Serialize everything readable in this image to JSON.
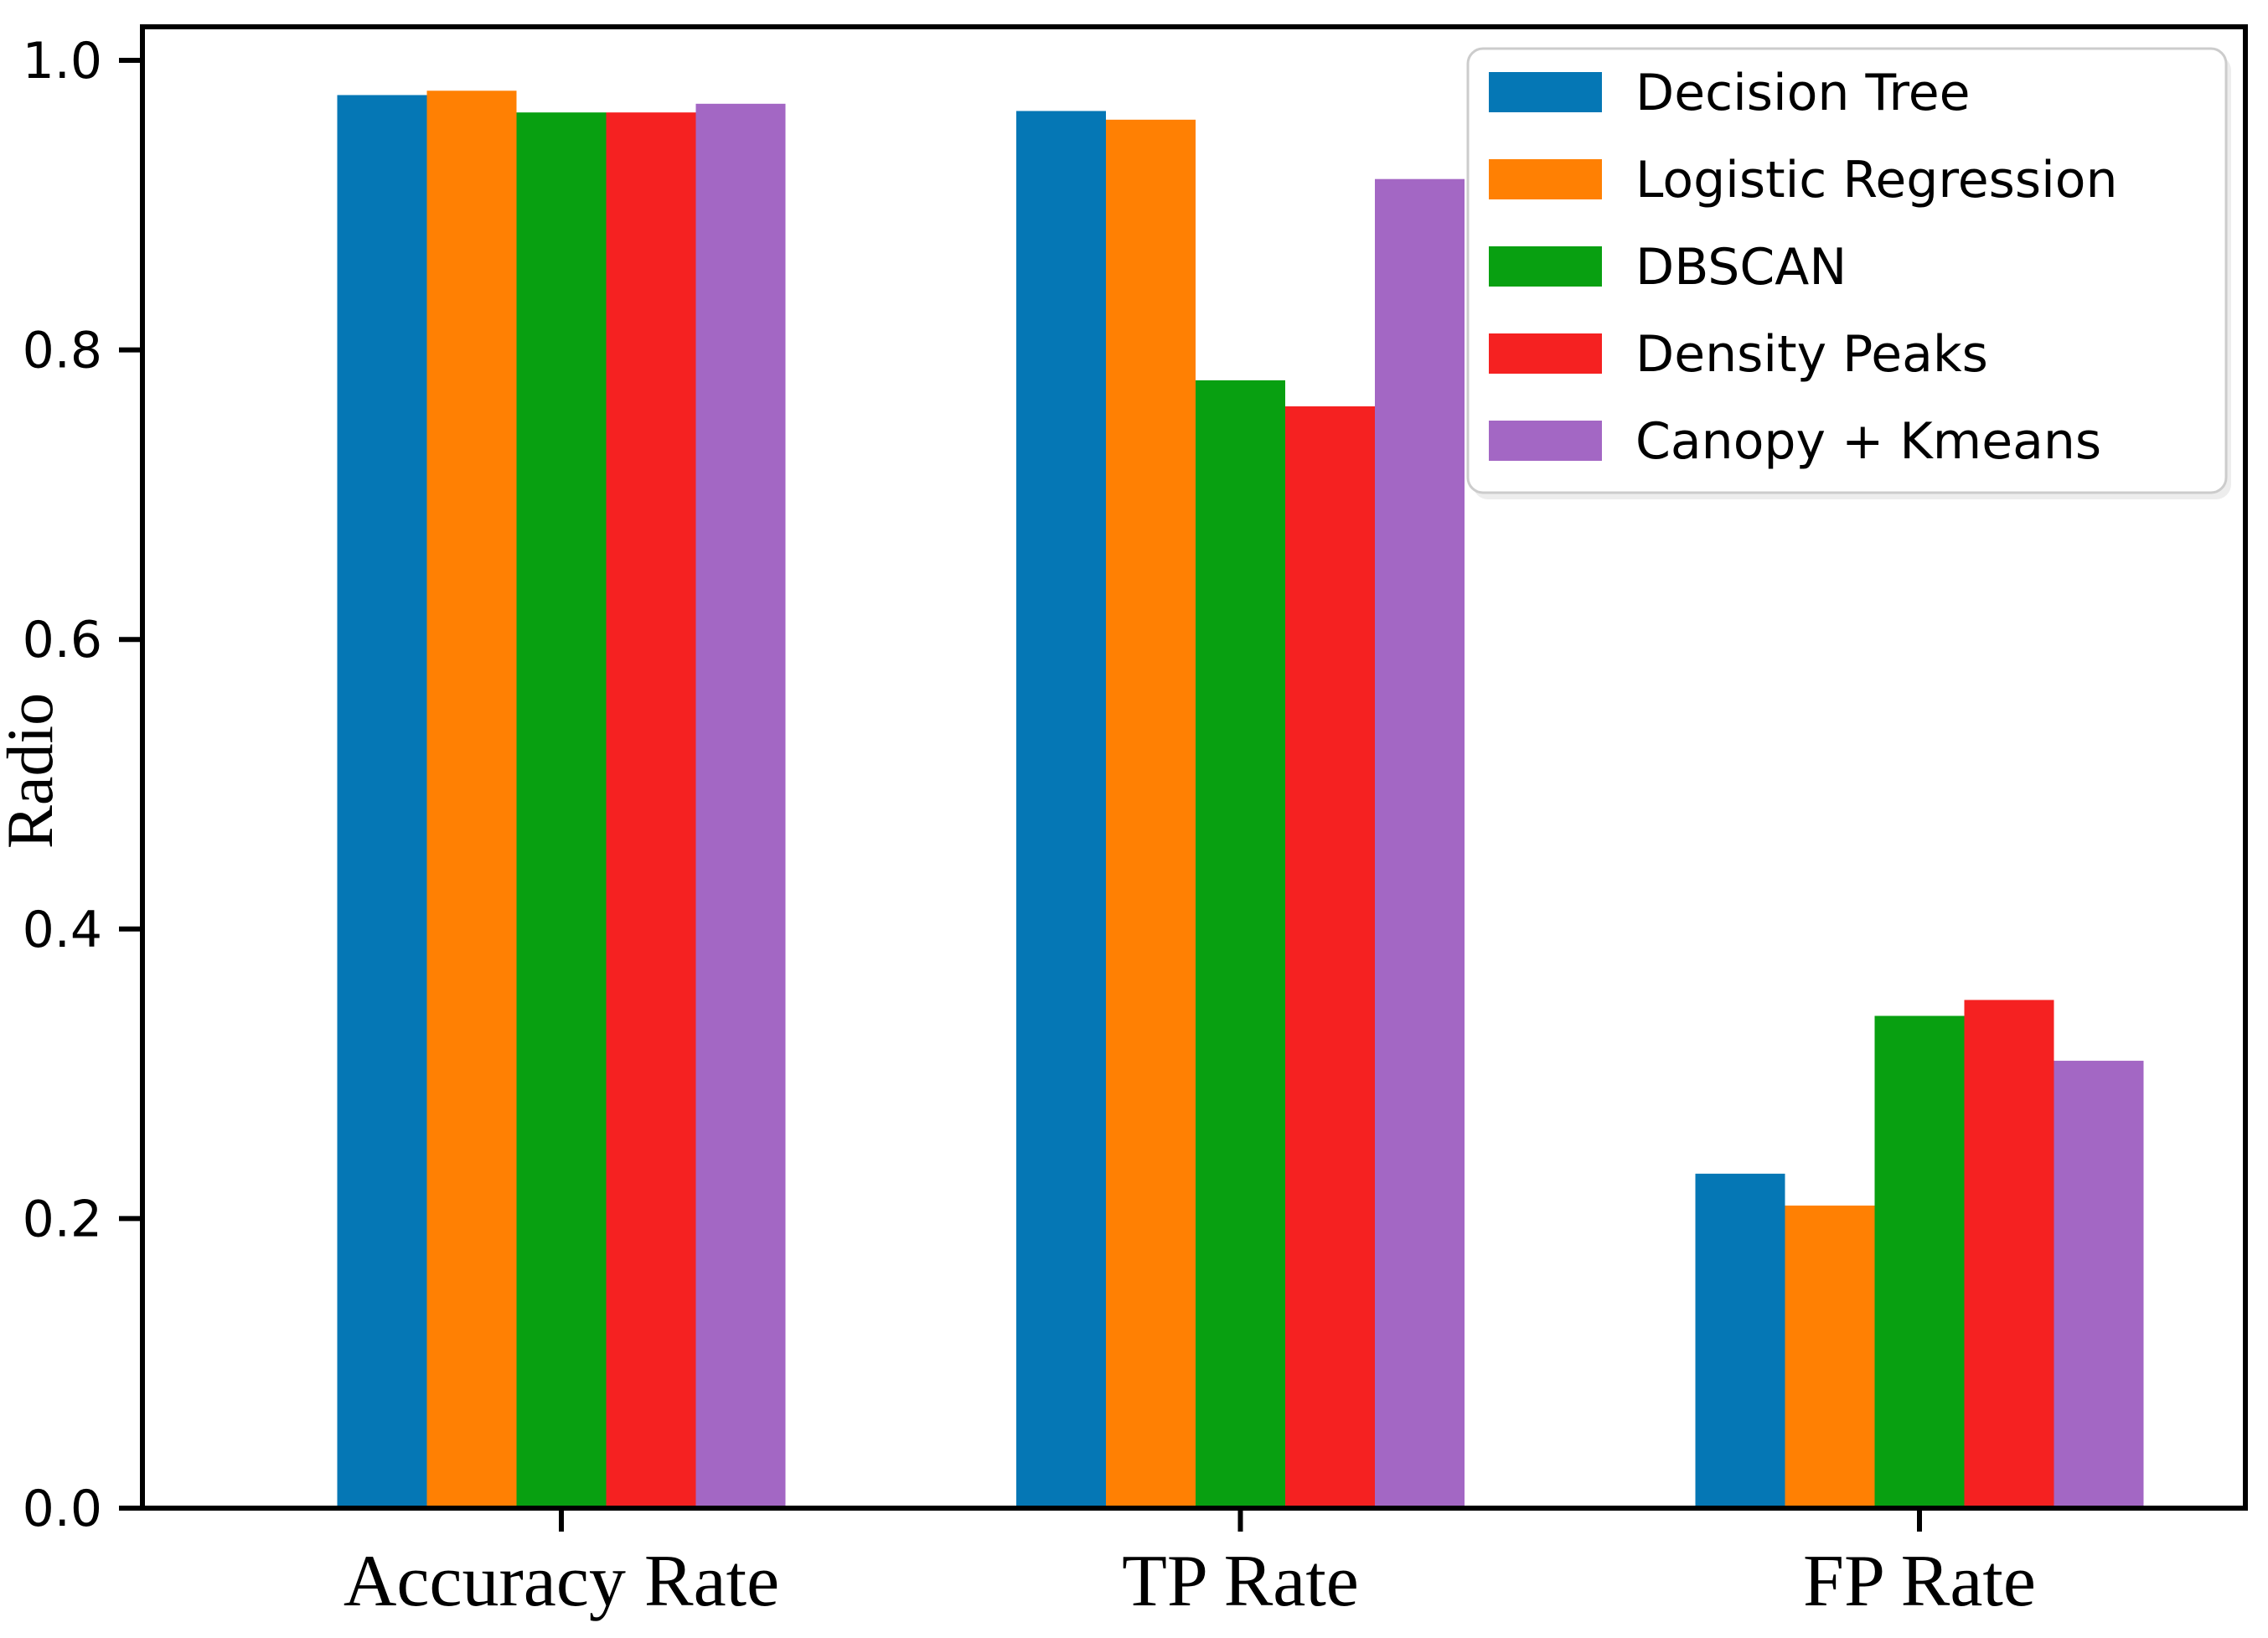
{
  "figure": {
    "background": "#ffffff",
    "axis_color": "#000000"
  },
  "chart_data": {
    "type": "bar",
    "title": "",
    "categories": [
      "Accuracy Rate",
      "TP Rate",
      "FP Rate"
    ],
    "series": [
      {
        "name": "Decision Tree",
        "color": "#0577b5",
        "values": [
          0.976,
          0.965,
          0.231
        ]
      },
      {
        "name": "Logistic Regression",
        "color": "#ff8003",
        "values": [
          0.979,
          0.959,
          0.209
        ]
      },
      {
        "name": "DBSCAN",
        "color": "#08a011",
        "values": [
          0.964,
          0.779,
          0.34
        ]
      },
      {
        "name": "Density Peaks",
        "color": "#f52121",
        "values": [
          0.964,
          0.761,
          0.351
        ]
      },
      {
        "name": "Canopy + Kmeans",
        "color": "#a367c4",
        "values": [
          0.97,
          0.918,
          0.309
        ]
      }
    ],
    "xlabel": "",
    "ylabel": "Radio",
    "yticks": [
      0.0,
      0.2,
      0.4,
      0.6,
      0.8,
      1.0
    ],
    "ytick_labels": [
      "0.0",
      "0.2",
      "0.4",
      "0.6",
      "0.8",
      "1.0"
    ],
    "ylim": [
      0,
      1.023
    ],
    "grid": false,
    "legend_position": "upper right",
    "legend_border_color": "#cccccc",
    "legend_background": "#ffffff"
  }
}
